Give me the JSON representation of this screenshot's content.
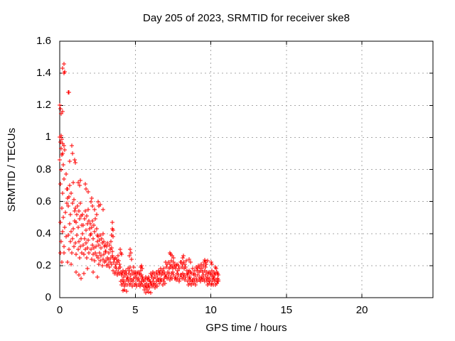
{
  "chart": {
    "title": "Day 205 of 2023, SRMTID for receiver ske8",
    "x_axis": {
      "title": "GPS time / hours"
    },
    "y_axis": {
      "title": "SRMTID / TECUs"
    }
  },
  "chart_data": {
    "type": "scatter",
    "title": "Day 205 of 2023, SRMTID for receiver ske8",
    "xlabel": "GPS time / hours",
    "ylabel": "SRMTID / TECUs",
    "xlim": [
      0,
      24.7
    ],
    "ylim": [
      0,
      1.6
    ],
    "x_ticks": [
      0,
      5,
      10,
      15,
      20
    ],
    "x_tick_labels": [
      "0",
      "5",
      "10",
      "15",
      "20"
    ],
    "y_ticks": [
      0,
      0.2,
      0.4,
      0.6,
      0.8,
      1.0,
      1.2,
      1.4,
      1.6
    ],
    "y_tick_labels": [
      "0",
      "0.2",
      "0.4",
      "0.6",
      "0.8",
      "1",
      "1.2",
      "1.4",
      "1.6"
    ],
    "grid": true,
    "grid_color": "#a8a8a8",
    "border_color": "#000000",
    "marker": "plus",
    "marker_color": "#ff0000",
    "point_runs": [
      {
        "x_start": 0.0,
        "x_step": 0.025,
        "y": [
          0.86,
          0.47,
          0.71,
          0.35,
          0.8,
          0.56,
          0.89,
          0.41,
          0.65,
          0.5,
          0.83,
          0.32,
          0.74,
          0.44,
          0.92,
          0.53,
          0.77,
          0.38,
          0.68,
          0.59,
          0.62
        ]
      },
      {
        "x_start": 0.525,
        "x_step": 0.025,
        "y": [
          0.68,
          0.39,
          0.57,
          0.3,
          0.63,
          0.46,
          0.7,
          0.35,
          0.52,
          0.41,
          0.65,
          0.28,
          0.59,
          0.37,
          0.72,
          0.43,
          0.61,
          0.32,
          0.54,
          0.48
        ]
      },
      {
        "x_start": 1.025,
        "x_step": 0.025,
        "y": [
          0.56,
          0.34,
          0.47,
          0.27,
          0.52,
          0.39,
          0.57,
          0.3,
          0.44,
          0.35,
          0.54,
          0.25,
          0.49,
          0.32,
          0.59,
          0.37,
          0.51,
          0.28,
          0.45,
          0.4
        ]
      },
      {
        "x_start": 1.525,
        "x_step": 0.025,
        "y": [
          0.52,
          0.33,
          0.45,
          0.27,
          0.49,
          0.37,
          0.54,
          0.3,
          0.42,
          0.34,
          0.51,
          0.25,
          0.46,
          0.31,
          0.55,
          0.36,
          0.48,
          0.28,
          0.43,
          0.39
        ]
      },
      {
        "x_start": 2.025,
        "x_step": 0.025,
        "y": [
          0.46,
          0.3,
          0.4,
          0.24,
          0.44,
          0.33,
          0.48,
          0.27,
          0.37,
          0.31,
          0.45,
          0.23,
          0.41,
          0.28,
          0.49,
          0.32,
          0.43,
          0.26,
          0.39,
          0.35
        ]
      },
      {
        "x_start": 2.525,
        "x_step": 0.025,
        "y": [
          0.38,
          0.25,
          0.33,
          0.21,
          0.36,
          0.28,
          0.39,
          0.23,
          0.31,
          0.26,
          0.37,
          0.2,
          0.34,
          0.24,
          0.4,
          0.27,
          0.35,
          0.22,
          0.32,
          0.29
        ]
      },
      {
        "x_start": 3.025,
        "x_step": 0.025,
        "y": [
          0.33,
          0.23,
          0.29,
          0.2,
          0.32,
          0.25,
          0.34,
          0.21,
          0.28,
          0.24,
          0.33,
          0.19,
          0.3,
          0.22,
          0.35,
          0.25,
          0.31,
          0.21,
          0.29,
          0.26
        ]
      },
      {
        "x_start": 3.525,
        "x_step": 0.025,
        "y": [
          0.25,
          0.17,
          0.22,
          0.15,
          0.24,
          0.19,
          0.25,
          0.16,
          0.21,
          0.18,
          0.24,
          0.14,
          0.22,
          0.16,
          0.26,
          0.18,
          0.23,
          0.15,
          0.21,
          0.19
        ]
      },
      {
        "x_start": 4.025,
        "x_step": 0.025,
        "y": [
          0.16,
          0.1,
          0.14,
          0.08,
          0.15,
          0.11,
          0.17,
          0.09,
          0.13,
          0.1,
          0.16,
          0.07,
          0.14,
          0.09,
          0.17,
          0.11,
          0.15,
          0.08,
          0.13,
          0.12
        ]
      },
      {
        "x_start": 4.525,
        "x_step": 0.025,
        "y": [
          0.18,
          0.1,
          0.15,
          0.08,
          0.17,
          0.12,
          0.19,
          0.09,
          0.14,
          0.11,
          0.17,
          0.07,
          0.15,
          0.1,
          0.19,
          0.12,
          0.16,
          0.08,
          0.14,
          0.13
        ]
      },
      {
        "x_start": 5.025,
        "x_step": 0.025,
        "y": [
          0.16,
          0.09,
          0.13,
          0.07,
          0.15,
          0.11,
          0.16,
          0.08,
          0.12,
          0.1,
          0.15,
          0.07,
          0.14,
          0.09,
          0.17,
          0.1,
          0.14,
          0.08,
          0.13,
          0.11
        ]
      },
      {
        "x_start": 5.525,
        "x_step": 0.025,
        "y": [
          0.12,
          0.07,
          0.1,
          0.05,
          0.11,
          0.08,
          0.13,
          0.06,
          0.09,
          0.07,
          0.12,
          0.05,
          0.11,
          0.07,
          0.13,
          0.08,
          0.11,
          0.06,
          0.1,
          0.09
        ]
      },
      {
        "x_start": 6.025,
        "x_step": 0.025,
        "y": [
          0.15,
          0.09,
          0.13,
          0.07,
          0.14,
          0.1,
          0.16,
          0.08,
          0.12,
          0.09,
          0.15,
          0.06,
          0.13,
          0.08,
          0.16,
          0.1,
          0.14,
          0.07,
          0.12,
          0.11
        ]
      },
      {
        "x_start": 6.525,
        "x_step": 0.025,
        "y": [
          0.17,
          0.11,
          0.15,
          0.09,
          0.16,
          0.12,
          0.18,
          0.1,
          0.14,
          0.11,
          0.17,
          0.08,
          0.15,
          0.1,
          0.18,
          0.12,
          0.16,
          0.09,
          0.14,
          0.13
        ]
      },
      {
        "x_start": 7.025,
        "x_step": 0.025,
        "y": [
          0.22,
          0.14,
          0.19,
          0.12,
          0.21,
          0.16,
          0.22,
          0.13,
          0.18,
          0.15,
          0.21,
          0.11,
          0.19,
          0.13,
          0.23,
          0.15,
          0.2,
          0.12,
          0.18,
          0.16,
          0.22,
          0.14,
          0.19,
          0.12
        ]
      },
      {
        "x_start": 7.625,
        "x_step": 0.025,
        "y": [
          0.21,
          0.13,
          0.18,
          0.11,
          0.2,
          0.15,
          0.21,
          0.12,
          0.17,
          0.14,
          0.2,
          0.1,
          0.18,
          0.12,
          0.22,
          0.14
        ]
      },
      {
        "x_start": 8.025,
        "x_step": 0.025,
        "y": [
          0.22,
          0.14,
          0.19,
          0.12,
          0.21,
          0.15,
          0.22,
          0.13,
          0.18,
          0.14,
          0.21,
          0.11,
          0.19,
          0.13,
          0.23,
          0.15
        ]
      },
      {
        "x_start": 8.425,
        "x_step": 0.025,
        "y": [
          0.17,
          0.1,
          0.14,
          0.08,
          0.16,
          0.12,
          0.17,
          0.09,
          0.13,
          0.11,
          0.16,
          0.08,
          0.15,
          0.1,
          0.18,
          0.11,
          0.15,
          0.09,
          0.14,
          0.12,
          0.17,
          0.1,
          0.14,
          0.08
        ]
      },
      {
        "x_start": 9.025,
        "x_step": 0.025,
        "y": [
          0.19,
          0.12,
          0.17,
          0.1,
          0.18,
          0.14,
          0.2,
          0.11,
          0.16,
          0.13,
          0.19,
          0.1,
          0.17,
          0.12,
          0.21,
          0.13,
          0.18,
          0.11,
          0.16,
          0.14,
          0.2,
          0.12,
          0.17,
          0.1,
          0.19,
          0.14,
          0.21,
          0.12
        ]
      },
      {
        "x_start": 9.725,
        "x_step": 0.025,
        "y": [
          0.16,
          0.1,
          0.13,
          0.08,
          0.15,
          0.11,
          0.16,
          0.09,
          0.12,
          0.1,
          0.15,
          0.08,
          0.14,
          0.09,
          0.17,
          0.11,
          0.14,
          0.08,
          0.13,
          0.12,
          0.16,
          0.1,
          0.14,
          0.08,
          0.15,
          0.11,
          0.16,
          0.09,
          0.12,
          0.1,
          0.14,
          0.11
        ]
      }
    ],
    "extra_points": [
      [
        0.19,
        1.43
      ],
      [
        0.28,
        1.46
      ],
      [
        0.3,
        1.4
      ],
      [
        0.34,
        1.41
      ],
      [
        0.55,
        1.28
      ],
      [
        0.6,
        1.28
      ],
      [
        0.02,
        1.2
      ],
      [
        0.05,
        1.18
      ],
      [
        0.08,
        1.15
      ],
      [
        0.2,
        1.16
      ],
      [
        0.02,
        1.0
      ],
      [
        0.05,
        0.97
      ],
      [
        0.1,
        1.01
      ],
      [
        0.13,
        0.99
      ],
      [
        0.18,
        0.96
      ],
      [
        0.08,
        0.93
      ],
      [
        0.19,
        0.9
      ],
      [
        0.3,
        0.95
      ],
      [
        0.8,
        0.95
      ],
      [
        0.85,
        0.9
      ],
      [
        1.0,
        0.86
      ],
      [
        1.05,
        0.84
      ],
      [
        0.66,
        0.85
      ],
      [
        1.2,
        0.72
      ],
      [
        1.3,
        0.7
      ],
      [
        1.35,
        0.73
      ],
      [
        1.7,
        0.71
      ],
      [
        1.75,
        0.68
      ],
      [
        1.9,
        0.66
      ],
      [
        2.05,
        0.6
      ],
      [
        2.1,
        0.62
      ],
      [
        2.15,
        0.57
      ],
      [
        2.3,
        0.55
      ],
      [
        2.45,
        0.52
      ],
      [
        2.55,
        0.6
      ],
      [
        2.6,
        0.57
      ],
      [
        2.7,
        0.58
      ],
      [
        2.85,
        0.55
      ],
      [
        0.05,
        0.28
      ],
      [
        0.14,
        0.22
      ],
      [
        0.28,
        0.28
      ],
      [
        0.5,
        0.22
      ],
      [
        0.75,
        0.21
      ],
      [
        1.1,
        0.16
      ],
      [
        1.25,
        0.14
      ],
      [
        1.4,
        0.12
      ],
      [
        1.6,
        0.15
      ],
      [
        1.85,
        0.18
      ],
      [
        2.2,
        0.16
      ],
      [
        2.5,
        0.13
      ],
      [
        3.45,
        0.39
      ],
      [
        3.48,
        0.47
      ],
      [
        3.48,
        0.43
      ],
      [
        3.52,
        0.42
      ],
      [
        3.55,
        0.38
      ],
      [
        4.0,
        0.3
      ],
      [
        4.05,
        0.28
      ],
      [
        4.1,
        0.27
      ],
      [
        4.2,
        0.045
      ],
      [
        4.3,
        0.05
      ],
      [
        4.4,
        0.04
      ],
      [
        4.6,
        0.26
      ],
      [
        4.65,
        0.3
      ],
      [
        4.7,
        0.28
      ],
      [
        4.75,
        0.24
      ],
      [
        5.35,
        0.19
      ],
      [
        5.4,
        0.2
      ],
      [
        5.45,
        0.18
      ],
      [
        5.7,
        0.03
      ],
      [
        5.9,
        0.035
      ],
      [
        6.0,
        0.03
      ],
      [
        7.28,
        0.28
      ],
      [
        7.33,
        0.27
      ],
      [
        7.45,
        0.26
      ],
      [
        7.55,
        0.25
      ],
      [
        8.15,
        0.25
      ],
      [
        8.2,
        0.26
      ],
      [
        8.55,
        0.24
      ],
      [
        8.65,
        0.22
      ],
      [
        9.55,
        0.22
      ],
      [
        9.6,
        0.235
      ],
      [
        9.65,
        0.22
      ],
      [
        9.8,
        0.23
      ],
      [
        10.0,
        0.22
      ],
      [
        10.05,
        0.21
      ],
      [
        10.3,
        0.19
      ],
      [
        10.35,
        0.18
      ],
      [
        10.45,
        0.15
      ],
      [
        10.48,
        0.1
      ]
    ]
  }
}
